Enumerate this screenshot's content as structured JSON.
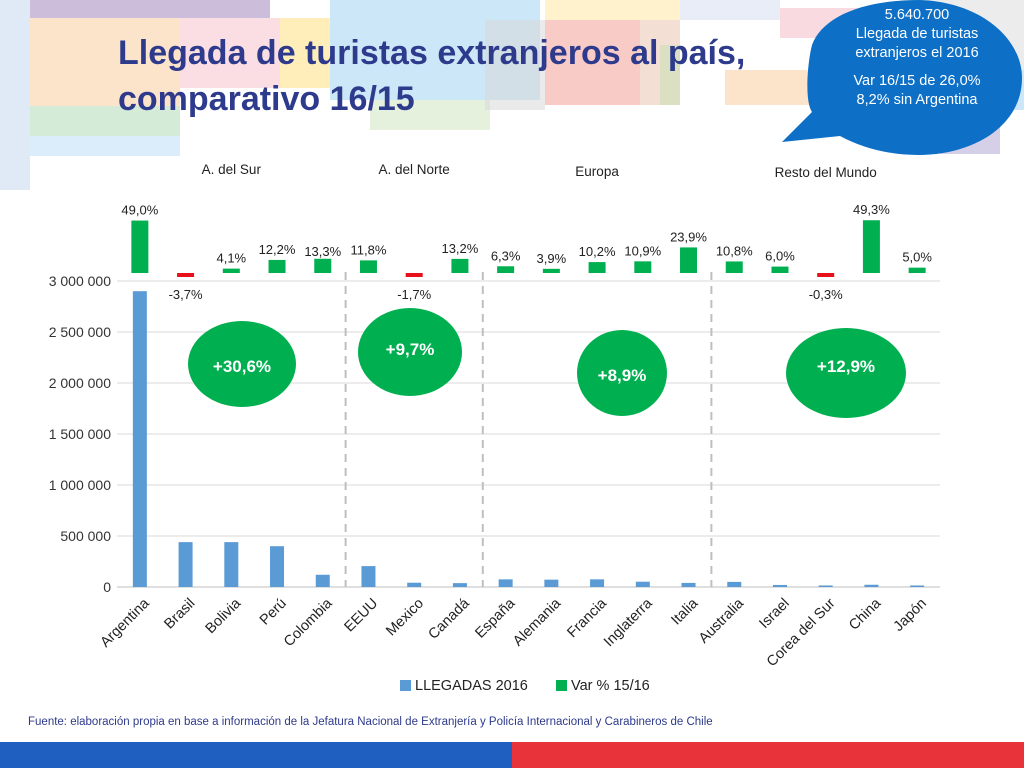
{
  "slide": {
    "title": "Llegada de turistas extranjeros al país, comparativo 16/15",
    "bubble": {
      "total": "5.640.700",
      "line1": "Llegada de turistas",
      "line2": "extranjeros el 2016",
      "line3": "Var 16/15 de 26,0%",
      "line4": "8,2% sin Argentina"
    },
    "source": "Fuente: elaboración propia en base a información de la Jefatura Nacional de Extranjería y Policía Internacional y Carabineros de Chile"
  },
  "colors": {
    "title": "#2e3a8c",
    "bar_arrivals": "#5b9bd5",
    "bar_positive": "#00b050",
    "bar_negative": "#e8101a",
    "ellipse": "#00b050",
    "bubble": "#0d6fc6",
    "divider": "#bfbfbf",
    "bottom_blue": "#1f5fbf",
    "bottom_red": "#e8333a"
  },
  "chart_data": {
    "type": "bar",
    "categories": [
      "Argentina",
      "Brasil",
      "Bolivia",
      "Perú",
      "Colombia",
      "EEUU",
      "Mexico",
      "Canadá",
      "España",
      "Alemania",
      "Francia",
      "Inglaterra",
      "Italia",
      "Australia",
      "Israel",
      "Corea del Sur",
      "China",
      "Japón"
    ],
    "series": [
      {
        "name": "LLEGADAS 2016",
        "values": [
          2900000,
          440000,
          440000,
          400000,
          120000,
          205000,
          42000,
          38000,
          75000,
          72000,
          75000,
          52000,
          40000,
          50000,
          20000,
          15000,
          22000,
          15000
        ]
      },
      {
        "name": "Var % 15/16",
        "values": [
          49.0,
          -3.7,
          4.1,
          12.2,
          13.3,
          11.8,
          -1.7,
          13.2,
          6.3,
          3.9,
          10.2,
          10.9,
          23.9,
          10.8,
          6.0,
          -0.3,
          49.3,
          5.0
        ]
      }
    ],
    "var_labels": [
      "49,0%",
      "-3,7%",
      "4,1%",
      "12,2%",
      "13,3%",
      "11,8%",
      "-1,7%",
      "13,2%",
      "6,3%",
      "3,9%",
      "10,2%",
      "10,9%",
      "23,9%",
      "10,8%",
      "6,0%",
      "-0,3%",
      "49,3%",
      "5,0%"
    ],
    "ylim": [
      0,
      3000000
    ],
    "y_ticks": [
      0,
      500000,
      1000000,
      1500000,
      2000000,
      2500000,
      3000000
    ],
    "y_tick_labels": [
      "0",
      "500 000",
      "1 000 000",
      "1 500 000",
      "2 000 000",
      "2 500 000",
      "3 000 000"
    ],
    "grid": true,
    "legend_position": "bottom",
    "groups": [
      {
        "name": "A. del Sur",
        "growth": "+30,6%",
        "first": 0,
        "last": 4
      },
      {
        "name": "A. del Norte",
        "growth": "+9,7%",
        "first": 5,
        "last": 7
      },
      {
        "name": "Europa",
        "growth": "+8,9%",
        "first": 8,
        "last": 12
      },
      {
        "name": "Resto del Mundo",
        "growth": "+12,9%",
        "first": 13,
        "last": 17
      }
    ]
  }
}
